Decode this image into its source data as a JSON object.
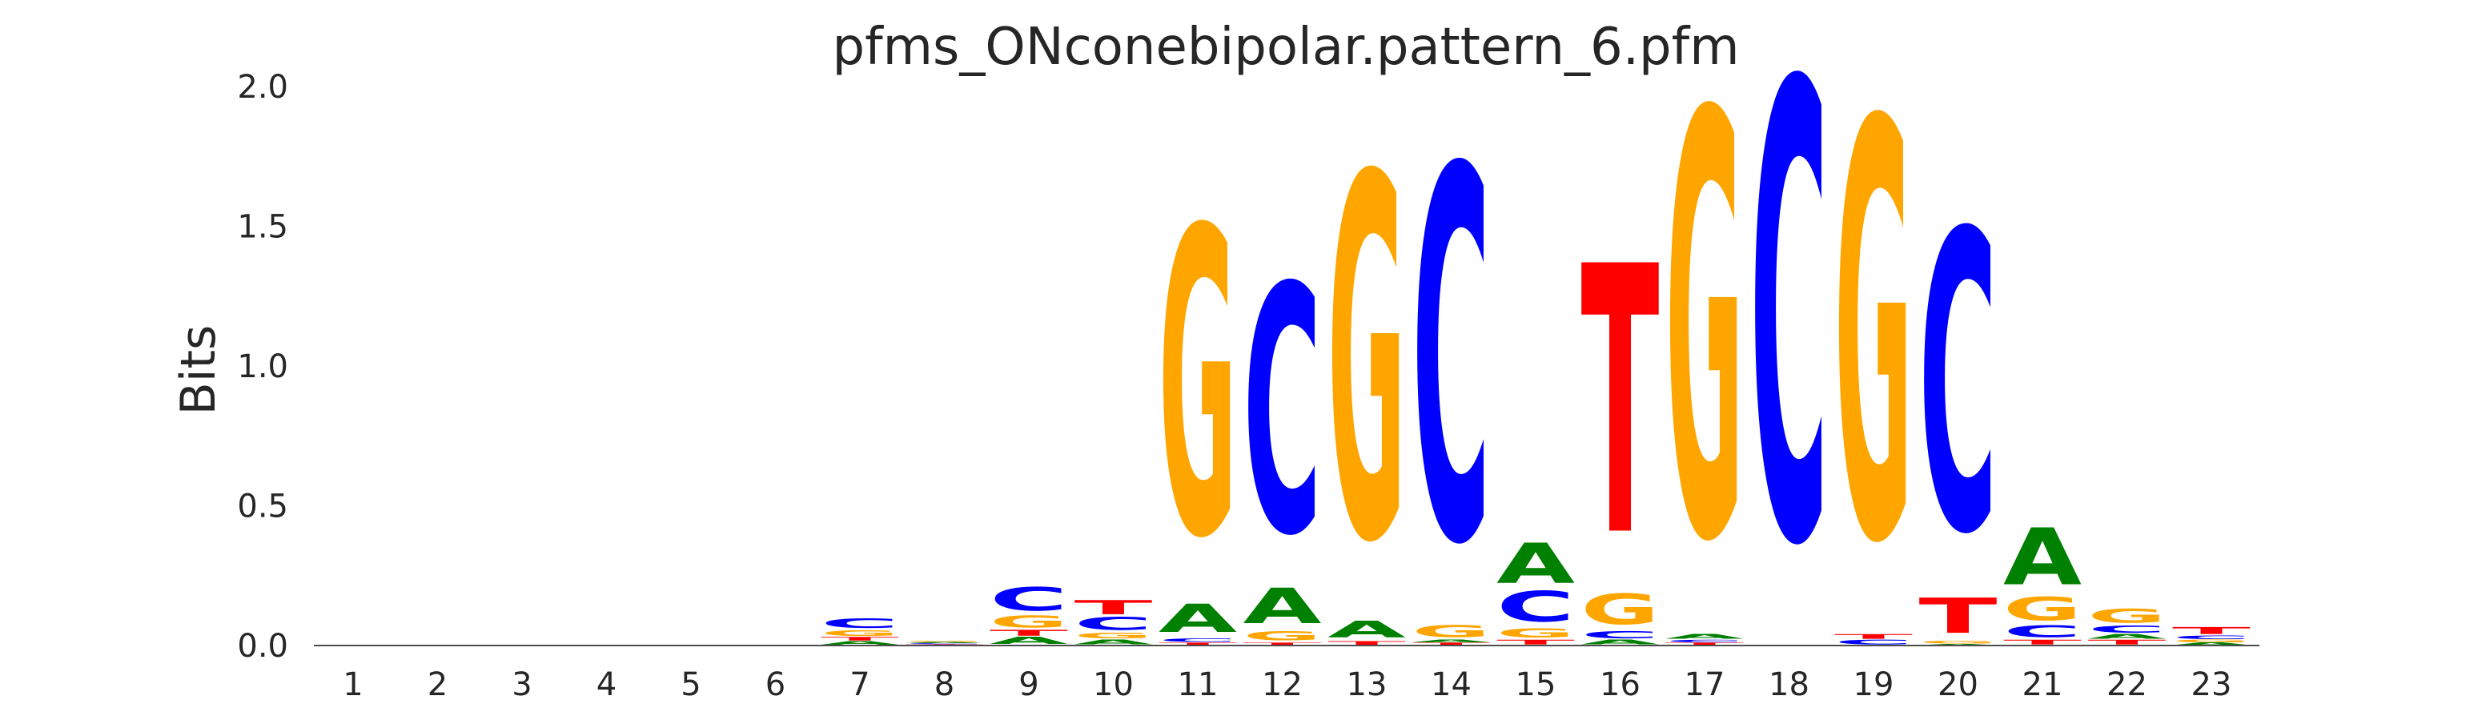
{
  "chart_data": {
    "type": "sequence_logo",
    "title": "pfms_ONconebipolar.pattern_6.pfm",
    "xlabel": "",
    "ylabel": "Bits",
    "ylim": [
      0,
      2.0
    ],
    "yticks": [
      "0.0",
      "0.5",
      "1.0",
      "1.5",
      "2.0"
    ],
    "positions": [
      "1",
      "2",
      "3",
      "4",
      "5",
      "6",
      "7",
      "8",
      "9",
      "10",
      "11",
      "12",
      "13",
      "14",
      "15",
      "16",
      "17",
      "18",
      "19",
      "20",
      "21",
      "22",
      "23"
    ],
    "base_colors": {
      "A": "#008000",
      "C": "#0000ff",
      "G": "#ffa500",
      "T": "#ff0000"
    },
    "stacks": [
      [],
      [],
      [],
      [],
      [],
      [],
      [
        {
          "base": "A",
          "h": 0.015
        },
        {
          "base": "T",
          "h": 0.015
        },
        {
          "base": "G",
          "h": 0.025
        },
        {
          "base": "C",
          "h": 0.04
        }
      ],
      [
        {
          "base": "T",
          "h": 0.004
        },
        {
          "base": "C",
          "h": 0.004
        },
        {
          "base": "A",
          "h": 0.004
        },
        {
          "base": "G",
          "h": 0.005
        }
      ],
      [
        {
          "base": "A",
          "h": 0.03
        },
        {
          "base": "T",
          "h": 0.025
        },
        {
          "base": "G",
          "h": 0.05
        },
        {
          "base": "C",
          "h": 0.1
        }
      ],
      [
        {
          "base": "A",
          "h": 0.02
        },
        {
          "base": "G",
          "h": 0.025
        },
        {
          "base": "C",
          "h": 0.055
        },
        {
          "base": "T",
          "h": 0.06
        }
      ],
      [
        {
          "base": "T",
          "h": 0.01
        },
        {
          "base": "C",
          "h": 0.015
        },
        {
          "base": "A",
          "h": 0.12
        },
        {
          "base": "G",
          "h": 1.3
        }
      ],
      [
        {
          "base": "T",
          "h": 0.01
        },
        {
          "base": "G",
          "h": 0.04
        },
        {
          "base": "A",
          "h": 0.15
        },
        {
          "base": "C",
          "h": 1.05
        }
      ],
      [
        {
          "base": "T",
          "h": 0.015
        },
        {
          "base": "A",
          "h": 0.07
        },
        {
          "base": "G",
          "h": 1.54
        }
      ],
      [
        {
          "base": "T",
          "h": 0.01
        },
        {
          "base": "A",
          "h": 0.01
        },
        {
          "base": "G",
          "h": 0.05
        },
        {
          "base": "C",
          "h": 1.58
        }
      ],
      [
        {
          "base": "T",
          "h": 0.02
        },
        {
          "base": "G",
          "h": 0.04
        },
        {
          "base": "C",
          "h": 0.13
        },
        {
          "base": "A",
          "h": 0.17
        }
      ],
      [
        {
          "base": "A",
          "h": 0.02
        },
        {
          "base": "C",
          "h": 0.03
        },
        {
          "base": "G",
          "h": 0.13
        },
        {
          "base": "T",
          "h": 1.14
        }
      ],
      [
        {
          "base": "T",
          "h": 0.01
        },
        {
          "base": "C",
          "h": 0.01
        },
        {
          "base": "A",
          "h": 0.02
        },
        {
          "base": "G",
          "h": 1.8
        }
      ],
      [
        {
          "base": "C",
          "h": 1.94
        }
      ],
      [
        {
          "base": "C",
          "h": 0.02
        },
        {
          "base": "T",
          "h": 0.02
        },
        {
          "base": "G",
          "h": 1.77
        }
      ],
      [
        {
          "base": "A",
          "h": 0.005
        },
        {
          "base": "G",
          "h": 0.01
        },
        {
          "base": "T",
          "h": 0.15
        },
        {
          "base": "C",
          "h": 1.27
        }
      ],
      [
        {
          "base": "T",
          "h": 0.02
        },
        {
          "base": "C",
          "h": 0.05
        },
        {
          "base": "G",
          "h": 0.1
        },
        {
          "base": "A",
          "h": 0.24
        }
      ],
      [
        {
          "base": "T",
          "h": 0.02
        },
        {
          "base": "A",
          "h": 0.02
        },
        {
          "base": "C",
          "h": 0.03
        },
        {
          "base": "G",
          "h": 0.06
        }
      ],
      [
        {
          "base": "A",
          "h": 0.01
        },
        {
          "base": "G",
          "h": 0.01
        },
        {
          "base": "C",
          "h": 0.015
        },
        {
          "base": "T",
          "h": 0.03
        }
      ]
    ]
  }
}
